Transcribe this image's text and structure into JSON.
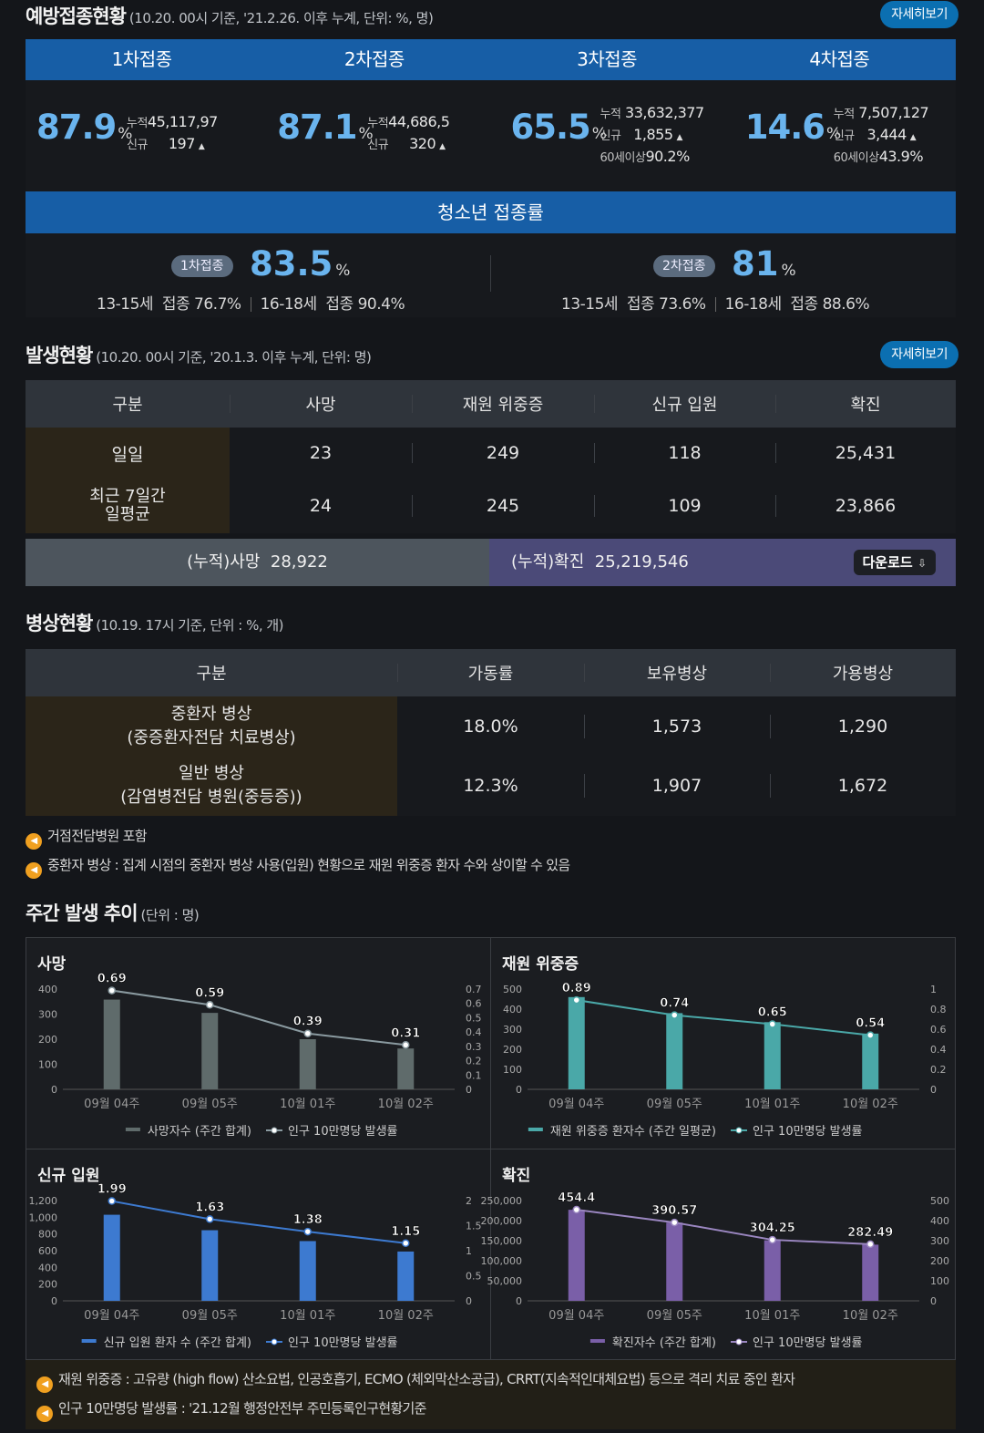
{
  "vaccination": {
    "title": "예방접종현황",
    "subtitle": "(10.20. 00시 기준, '21.2.26. 이후 누계, 단위: %, 명)",
    "detail_label": "자세히보기",
    "doses": [
      {
        "label": "1차접종",
        "pct": "87.9",
        "cum": "45,117,97",
        "new": "197",
        "sixty": ""
      },
      {
        "label": "2차접종",
        "pct": "87.1",
        "cum": "44,686,5",
        "new": "320",
        "sixty": ""
      },
      {
        "label": "3차접종",
        "pct": "65.5",
        "cum": "33,632,377",
        "new": "1,855",
        "sixty": "90.2%"
      },
      {
        "label": "4차접종",
        "pct": "14.6",
        "cum": "7,507,127",
        "new": "3,444",
        "sixty": "43.9%"
      }
    ],
    "pct_unit": "%",
    "cum_label": "누적",
    "new_label": "신규",
    "sixty_label": "60세이상"
  },
  "teen": {
    "title": "청소년 접종률",
    "first": {
      "pill": "1차접종",
      "pct": "83.5",
      "a_label": "13-15세",
      "a_val": "접종 76.7%",
      "b_label": "16-18세",
      "b_val": "접종 90.4%"
    },
    "second": {
      "pill": "2차접종",
      "pct": "81",
      "a_label": "13-15세",
      "a_val": "접종 73.6%",
      "b_label": "16-18세",
      "b_val": "접종 88.6%"
    }
  },
  "occurrence": {
    "title": "발생현황",
    "subtitle": "(10.20. 00시 기준, '20.1.3. 이후 누계, 단위: 명)",
    "detail_label": "자세히보기",
    "headers": [
      "구분",
      "사망",
      "재원 위중증",
      "신규 입원",
      "확진"
    ],
    "rows": [
      {
        "label": "일일",
        "values": [
          "23",
          "249",
          "118",
          "25,431"
        ]
      },
      {
        "label": "최근 7일간 일평균",
        "values": [
          "24",
          "245",
          "109",
          "23,866"
        ]
      }
    ],
    "cum_death_label": "(누적)사망",
    "cum_death": "28,922",
    "cum_conf_label": "(누적)확진",
    "cum_conf": "25,219,546",
    "download_label": "다운로드"
  },
  "beds": {
    "title": "병상현황",
    "subtitle": "(10.19. 17시 기준, 단위 : %, 개)",
    "headers": [
      "구분",
      "가동률",
      "보유병상",
      "가용병상"
    ],
    "rows": [
      {
        "label1": "중환자 병상",
        "label2": "(중증환자전담 치료병상)",
        "values": [
          "18.0%",
          "1,573",
          "1,290"
        ]
      },
      {
        "label1": "일반 병상",
        "label2": "(감염병전담 병원(중등증))",
        "values": [
          "12.3%",
          "1,907",
          "1,672"
        ]
      }
    ],
    "notes": [
      "거점전담병원 포함",
      "중환자 병상 : 집계 시점의 중환자 병상 사용(입원) 현황으로 재원 위중증 환자 수와 상이할 수 있음"
    ]
  },
  "weekly": {
    "title": "주간 발생 추이",
    "subtitle": "(단위 : 명)",
    "footnotes": [
      "재원 위중증 : 고유량 (high flow) 산소요법, 인공호흡기, ECMO (체외막산소공급), CRRT(지속적인대체요법) 등으로 격리 치료 중인 환자",
      "인구 10만명당 발생률 : '21.12월 행정안전부 주민등록인구현황기준"
    ]
  },
  "chart_data": [
    {
      "type": "bar",
      "title": "사망",
      "categories": [
        "09월 04주",
        "09월 05주",
        "10월 01주",
        "10월 02주"
      ],
      "series": [
        {
          "name": "사망자수 (주간 합계)",
          "values": [
            358,
            305,
            200,
            163
          ]
        },
        {
          "name": "인구 10만명당 발생률",
          "values": [
            0.69,
            0.59,
            0.39,
            0.31
          ]
        }
      ],
      "y_ticks": [
        "0",
        "100",
        "200",
        "300",
        "400"
      ],
      "y2_ticks": [
        "0",
        "0.1",
        "0.2",
        "0.3",
        "0.4",
        "0.5",
        "0.6",
        "0.7"
      ],
      "ylim": [
        0,
        400
      ],
      "y2lim": [
        0,
        0.7
      ],
      "bar_color": "#5f6b6b",
      "line_color": "#8a9aa0"
    },
    {
      "type": "bar",
      "title": "재원 위중증",
      "categories": [
        "09월 04주",
        "09월 05주",
        "10월 01주",
        "10월 02주"
      ],
      "series": [
        {
          "name": "재원 위중증 환자수 (주간 일평균)",
          "values": [
            460,
            380,
            335,
            278
          ]
        },
        {
          "name": "인구 10만명당 발생률",
          "values": [
            0.89,
            0.74,
            0.65,
            0.54
          ]
        }
      ],
      "y_ticks": [
        "0",
        "100",
        "200",
        "300",
        "400",
        "500"
      ],
      "y2_ticks": [
        "0",
        "0.2",
        "0.4",
        "0.6",
        "0.8",
        "1"
      ],
      "ylim": [
        0,
        500
      ],
      "y2lim": [
        0,
        1
      ],
      "bar_color": "#4aa8a8",
      "line_color": "#4aa8a8"
    },
    {
      "type": "bar",
      "title": "신규 입원",
      "categories": [
        "09월 04주",
        "09월 05주",
        "10월 01주",
        "10월 02주"
      ],
      "series": [
        {
          "name": "신규 입원 환자 수 (주간 합계)",
          "values": [
            1030,
            845,
            715,
            590
          ]
        },
        {
          "name": "인구 10만명당 발생률",
          "values": [
            1.99,
            1.63,
            1.38,
            1.15
          ]
        }
      ],
      "y_ticks": [
        "0",
        "200",
        "400",
        "600",
        "800",
        "1,000",
        "1,200"
      ],
      "y2_ticks": [
        "0",
        "0.5",
        "1",
        "1.5",
        "2"
      ],
      "ylim": [
        0,
        1200
      ],
      "y2lim": [
        0,
        2
      ],
      "bar_color": "#3d7ad0",
      "line_color": "#3d7ad0"
    },
    {
      "type": "bar",
      "title": "확진",
      "categories": [
        "09월 04주",
        "09월 05주",
        "10월 01주",
        "10월 02주"
      ],
      "series": [
        {
          "name": "확진자수 (주간 합계)",
          "values": [
            227000,
            195000,
            151000,
            140000
          ]
        },
        {
          "name": "인구 10만명당 발생률",
          "values": [
            454.4,
            390.57,
            304.25,
            282.49
          ]
        }
      ],
      "y_ticks": [
        "0",
        "50,000",
        "100,000",
        "150,000",
        "200,000",
        "250,000"
      ],
      "y2_ticks": [
        "0",
        "100",
        "200",
        "300",
        "400",
        "500"
      ],
      "ylim": [
        0,
        250000
      ],
      "y2lim": [
        0,
        500
      ],
      "bar_color": "#7a5fa8",
      "line_color": "#9a86c0"
    }
  ]
}
